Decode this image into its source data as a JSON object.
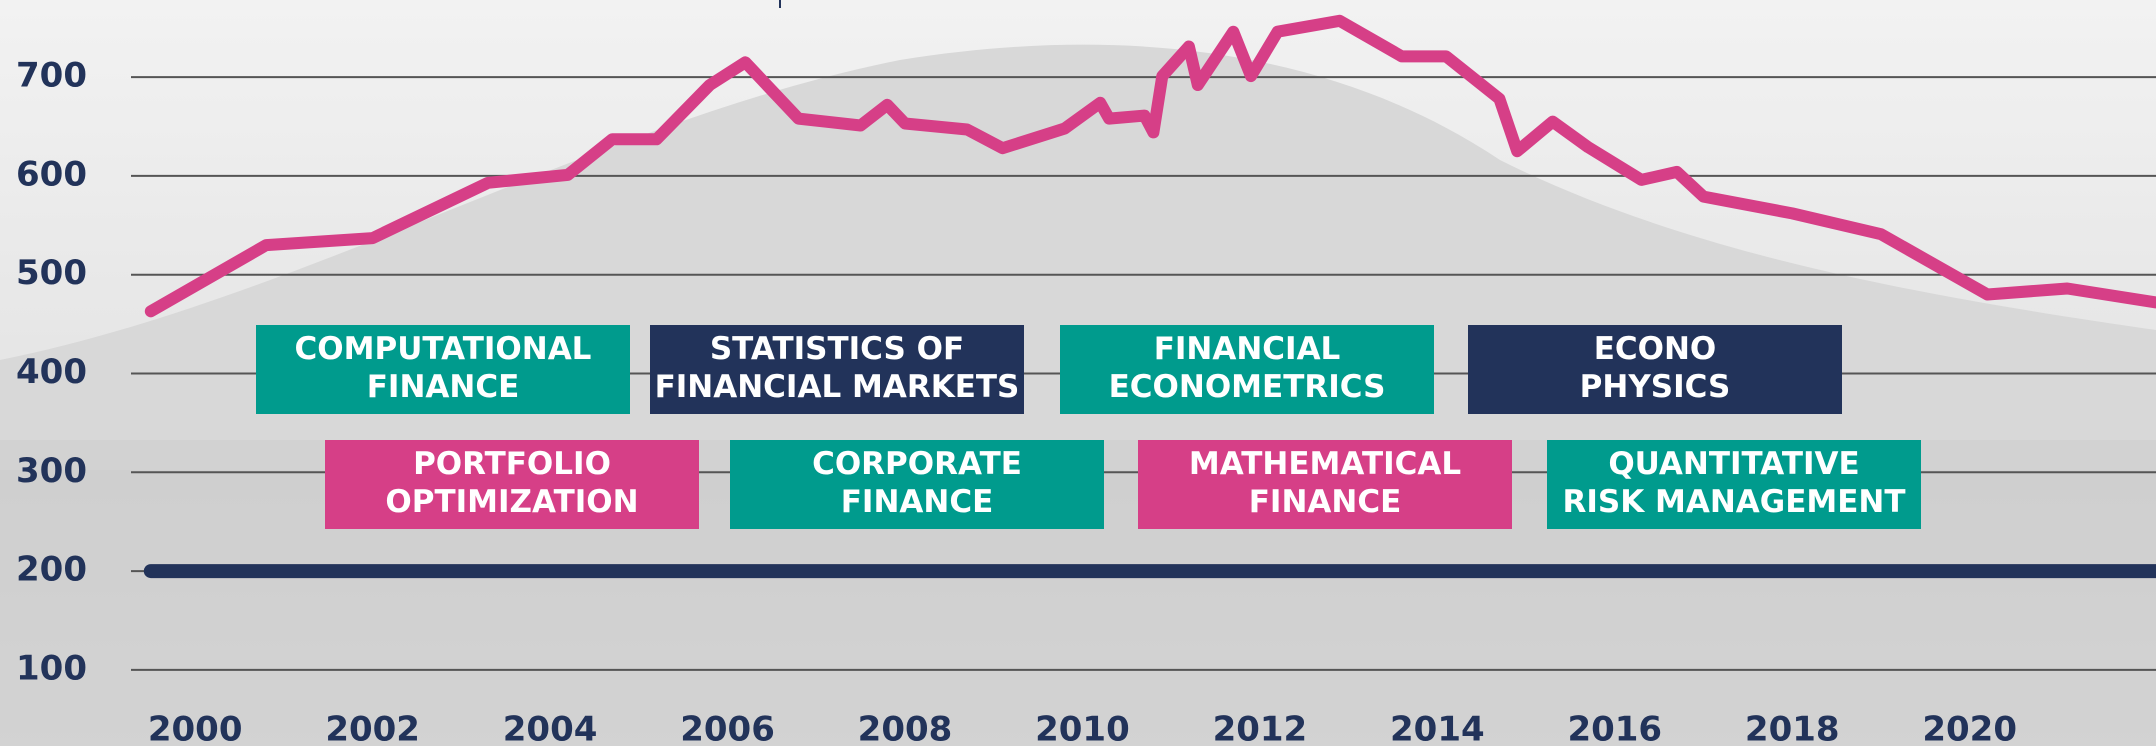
{
  "chart_data": {
    "type": "line",
    "xlim": [
      1997.8,
      2022.1
    ],
    "ylim": [
      25,
      775
    ],
    "xticks": [
      2000,
      2002,
      2004,
      2006,
      2008,
      2010,
      2012,
      2014,
      2016,
      2018,
      2020
    ],
    "yticks": [
      100,
      200,
      300,
      400,
      500,
      600,
      700
    ],
    "grid": true,
    "series": [
      {
        "color": "#d63f87",
        "x": [
          1999.5,
          2000.8,
          2002.0,
          2003.3,
          2004.2,
          2004.7,
          2005.2,
          2005.8,
          2006.2,
          2006.8,
          2007.5,
          2007.8,
          2008.0,
          2008.7,
          2009.1,
          2009.8,
          2010.2,
          2010.3,
          2010.7,
          2010.8,
          2010.9,
          2011.2,
          2011.3,
          2011.7,
          2011.9,
          2012.2,
          2012.9,
          2013.6,
          2014.1,
          2014.7,
          2014.9,
          2015.3,
          2015.7,
          2016.3,
          2016.7,
          2017.0,
          2018.0,
          2019.0,
          2020.2,
          2021.1,
          2022.1
        ],
        "values": [
          463,
          530,
          537,
          593,
          601,
          637,
          637,
          692,
          715,
          658,
          651,
          672,
          653,
          647,
          628,
          648,
          674,
          658,
          661,
          644,
          701,
          731,
          692,
          746,
          701,
          746,
          757,
          721,
          721,
          678,
          625,
          655,
          629,
          596,
          604,
          579,
          562,
          541,
          480,
          486,
          472
        ]
      },
      {
        "color": "#22335a",
        "x": [
          1999.5,
          2022.1
        ],
        "values": [
          200,
          200
        ]
      }
    ],
    "annotations": [
      {
        "lines": [
          "COMPUTATIONAL",
          "FINANCE"
        ],
        "color": "#009b8d"
      },
      {
        "lines": [
          "STATISTICS OF",
          "FINANCIAL MARKETS"
        ],
        "color": "#22335a"
      },
      {
        "lines": [
          "FINANCIAL",
          "ECONOMETRICS"
        ],
        "color": "#009b8d"
      },
      {
        "lines": [
          "ECONO",
          "PHYSICS"
        ],
        "color": "#22335a"
      },
      {
        "lines": [
          "PORTFOLIO",
          "OPTIMIZATION"
        ],
        "color": "#d63f87"
      },
      {
        "lines": [
          "CORPORATE",
          "FINANCE"
        ],
        "color": "#009b8d"
      },
      {
        "lines": [
          "MATHEMATICAL",
          "FINANCE"
        ],
        "color": "#d63f87"
      },
      {
        "lines": [
          "QUANTITATIVE",
          "RISK MANAGEMENT"
        ],
        "color": "#009b8d"
      }
    ]
  }
}
